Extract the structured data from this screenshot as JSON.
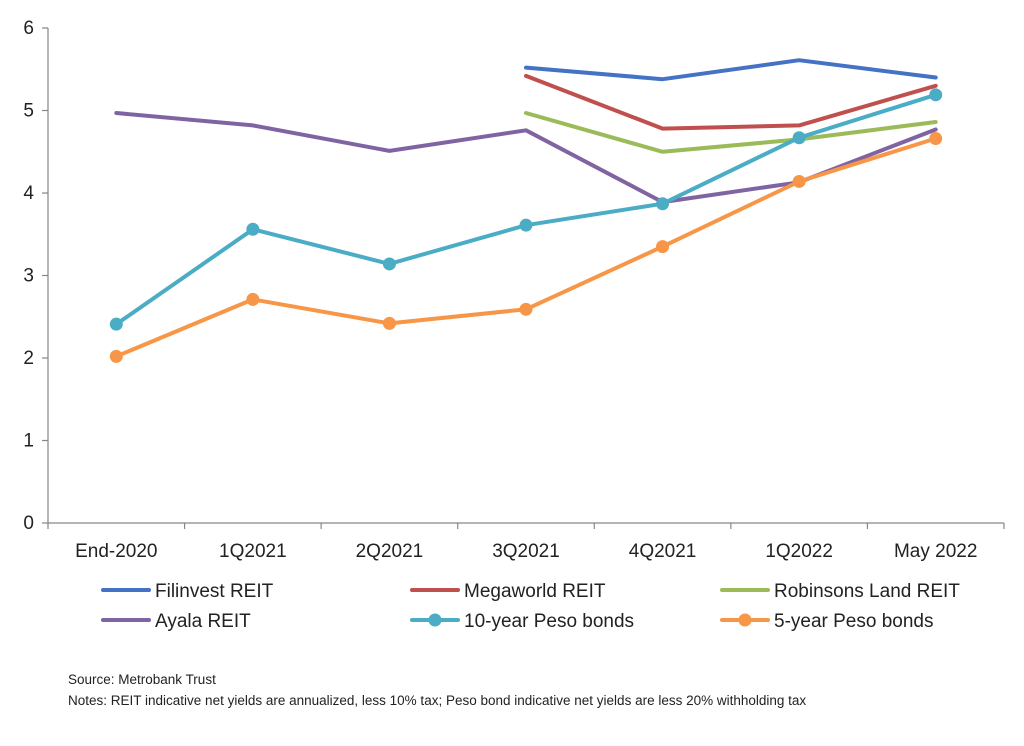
{
  "chart_data": {
    "type": "line",
    "title": "",
    "xlabel": "",
    "ylabel": "",
    "ylim": [
      0,
      6
    ],
    "yticks": [
      "0",
      "1",
      "2",
      "3",
      "4",
      "5",
      "6"
    ],
    "categories": [
      "End-2020",
      "1Q2021",
      "2Q2021",
      "3Q2021",
      "4Q2021",
      "1Q2022",
      "May 2022"
    ],
    "series": [
      {
        "name": "Filinvest REIT",
        "color": "#4472C4",
        "markers": false,
        "values": [
          null,
          null,
          null,
          5.52,
          5.38,
          5.61,
          5.4
        ]
      },
      {
        "name": "Megaworld REIT",
        "color": "#C0504D",
        "markers": false,
        "values": [
          null,
          null,
          null,
          5.42,
          4.78,
          4.82,
          5.3
        ]
      },
      {
        "name": "Robinsons Land REIT",
        "color": "#9BBB59",
        "markers": false,
        "values": [
          null,
          null,
          null,
          4.97,
          4.5,
          4.65,
          4.86
        ]
      },
      {
        "name": "Ayala REIT",
        "color": "#8064A2",
        "markers": false,
        "values": [
          4.97,
          4.82,
          4.51,
          4.76,
          3.89,
          4.13,
          4.77
        ]
      },
      {
        "name": "10-year Peso bonds",
        "color": "#4BACC6",
        "markers": true,
        "values": [
          2.41,
          3.56,
          3.14,
          3.61,
          3.87,
          4.67,
          5.19
        ]
      },
      {
        "name": "5-year Peso bonds",
        "color": "#F79646",
        "markers": true,
        "values": [
          2.02,
          2.71,
          2.42,
          2.59,
          3.35,
          4.14,
          4.66
        ]
      }
    ],
    "legend_position": "bottom",
    "source": "Source: Metrobank Trust",
    "notes": "Notes: REIT indicative net yields are annualized, less 10% tax; Peso bond indicative net yields are less 20% withholding tax"
  }
}
